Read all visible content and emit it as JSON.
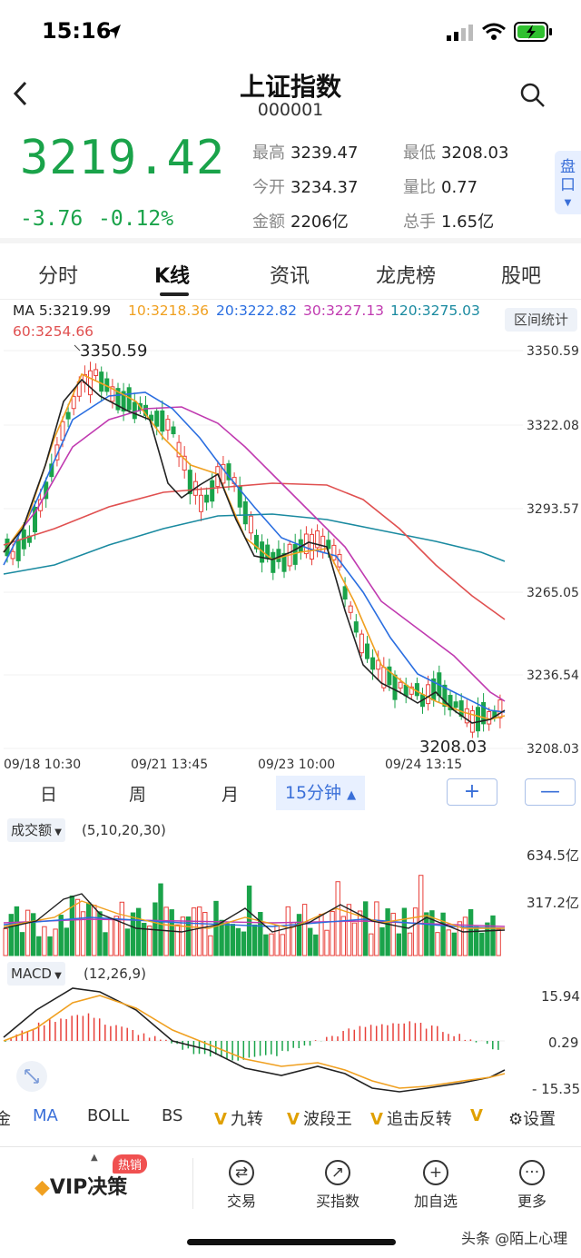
{
  "status": {
    "time": "15:16"
  },
  "header": {
    "title": "上证指数",
    "code": "000001"
  },
  "quote": {
    "price": "3219.42",
    "change": "-3.76",
    "change_pct": "-0.12%",
    "stats": [
      {
        "label": "最高",
        "value": "3239.47"
      },
      {
        "label": "最低",
        "value": "3208.03"
      },
      {
        "label": "今开",
        "value": "3234.37"
      },
      {
        "label": "量比",
        "value": "0.77"
      },
      {
        "label": "金额",
        "value": "2206亿"
      },
      {
        "label": "总手",
        "value": "1.65亿"
      }
    ],
    "pankou": "盘口"
  },
  "tabs": [
    "分时",
    "K线",
    "资讯",
    "龙虎榜",
    "股吧"
  ],
  "ma": {
    "ma5": "MA 5:3219.99",
    "ma10": "10:3218.36",
    "ma20": "20:3222.82",
    "ma30": "30:3227.13",
    "ma120": "120:3275.03",
    "ma60": "60:3254.66",
    "range_btn": "区间统计"
  },
  "kline": {
    "yticks": [
      "3350.59",
      "3322.08",
      "3293.57",
      "3265.05",
      "3236.54",
      "3208.03"
    ],
    "xticks": [
      "09/18  10:30",
      "09/21  13:45",
      "09/23  10:00",
      "09/24  13:15"
    ],
    "high_label": "3350.59",
    "low_label": "3208.03"
  },
  "periods": {
    "day": "日",
    "week": "周",
    "month": "月",
    "active": "15分钟",
    "plus": "+",
    "minus": "—"
  },
  "volume": {
    "label": "成交额",
    "params": "(5,10,20,30)",
    "max": "634.5亿",
    "mid": "317.2亿"
  },
  "macd": {
    "label": "MACD",
    "params": "(12,26,9)",
    "top": "15.94",
    "mid": "0.29",
    "bottom": "- 15.35"
  },
  "indicators": [
    "金",
    "MA",
    "BOLL",
    "BS",
    "九转",
    "波段王",
    "追击反转",
    "设置"
  ],
  "bottom": {
    "vip": "VIP决策",
    "hot": "热销",
    "items": [
      "交易",
      "买指数",
      "加自选",
      "更多"
    ]
  },
  "watermark": "头条 @陌上心理",
  "colors": {
    "up": "#e8403a",
    "down": "#1aa34a",
    "ma5": "#222222",
    "ma10": "#f0a020",
    "ma20": "#2a6ee0",
    "ma30": "#c03ab0",
    "ma60": "#e05050",
    "ma120": "#1a8aa0"
  }
}
